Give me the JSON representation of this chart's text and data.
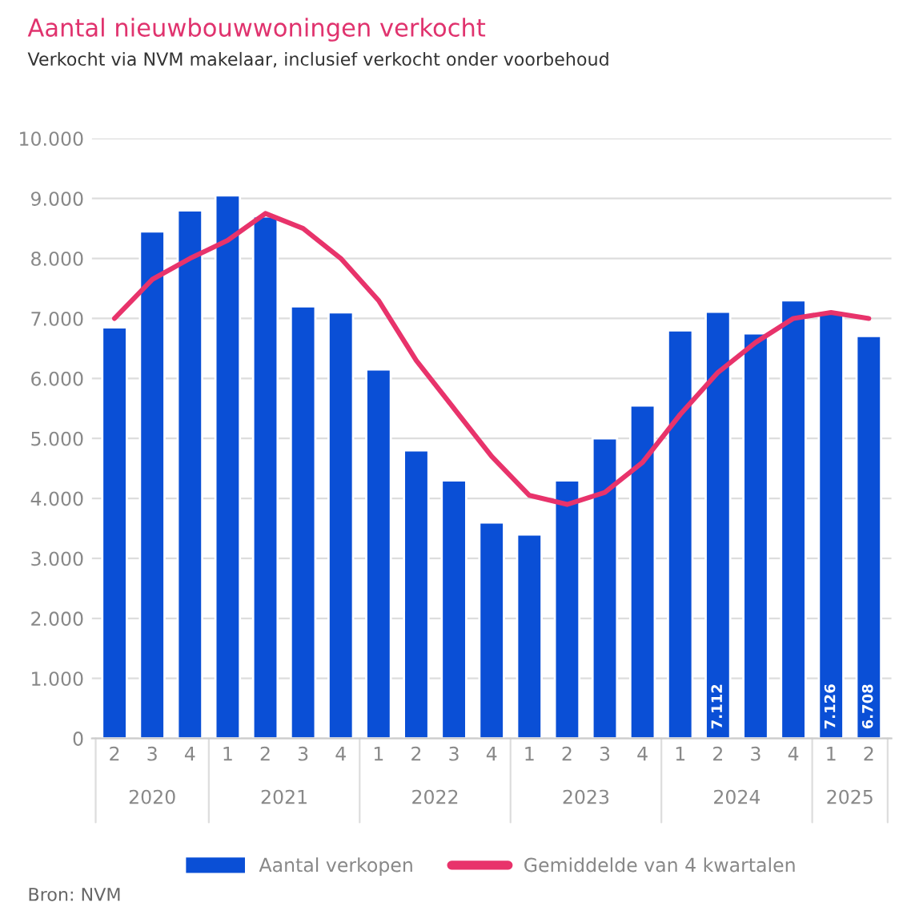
{
  "chart_data": {
    "type": "bar",
    "title": "Aantal nieuwbouwwoningen verkocht",
    "subtitle": "Verkocht via NVM makelaar, inclusief verkocht onder voorbehoud",
    "categories": [
      "2",
      "3",
      "4",
      "1",
      "2",
      "3",
      "4",
      "1",
      "2",
      "3",
      "4",
      "1",
      "2",
      "3",
      "4",
      "1",
      "2",
      "3",
      "4",
      "1",
      "2"
    ],
    "series": [
      {
        "name": "Aantal verkopen",
        "color": "#0a4fd6",
        "values": [
          6850,
          8450,
          8800,
          9050,
          8700,
          7200,
          7100,
          6150,
          4800,
          4300,
          3600,
          3400,
          4300,
          5000,
          5550,
          6800,
          7112,
          6750,
          7300,
          7126,
          6708
        ],
        "value_labels": [
          null,
          null,
          null,
          null,
          null,
          null,
          null,
          null,
          null,
          null,
          null,
          null,
          null,
          null,
          null,
          null,
          "7.112",
          null,
          null,
          "7.126",
          "6.708"
        ]
      },
      {
        "name": "Gemiddelde van 4 kwartalen",
        "type": "line",
        "color": "#e8336b",
        "values": [
          7000,
          7650,
          8000,
          8300,
          8750,
          8500,
          8000,
          7300,
          6300,
          5500,
          4700,
          4050,
          3900,
          4100,
          4600,
          5400,
          6100,
          6600,
          7000,
          7100,
          7000
        ]
      }
    ],
    "ylim": [
      0,
      10000
    ],
    "yticks": [
      {
        "value": 0,
        "label": "0"
      },
      {
        "value": 1000,
        "label": "1.000"
      },
      {
        "value": 2000,
        "label": "2.000"
      },
      {
        "value": 3000,
        "label": "3.000"
      },
      {
        "value": 4000,
        "label": "4.000"
      },
      {
        "value": 5000,
        "label": "5.000"
      },
      {
        "value": 6000,
        "label": "6.000"
      },
      {
        "value": 7000,
        "label": "7.000"
      },
      {
        "value": 8000,
        "label": "8.000"
      },
      {
        "value": 9000,
        "label": "9.000"
      },
      {
        "value": 10000,
        "label": "10.000"
      }
    ],
    "grid": "y",
    "legend": "bottom",
    "annotations": [
      "2020",
      "2021",
      "2022",
      "2023",
      "2024",
      "2025",
      "Bron: NVM"
    ]
  }
}
